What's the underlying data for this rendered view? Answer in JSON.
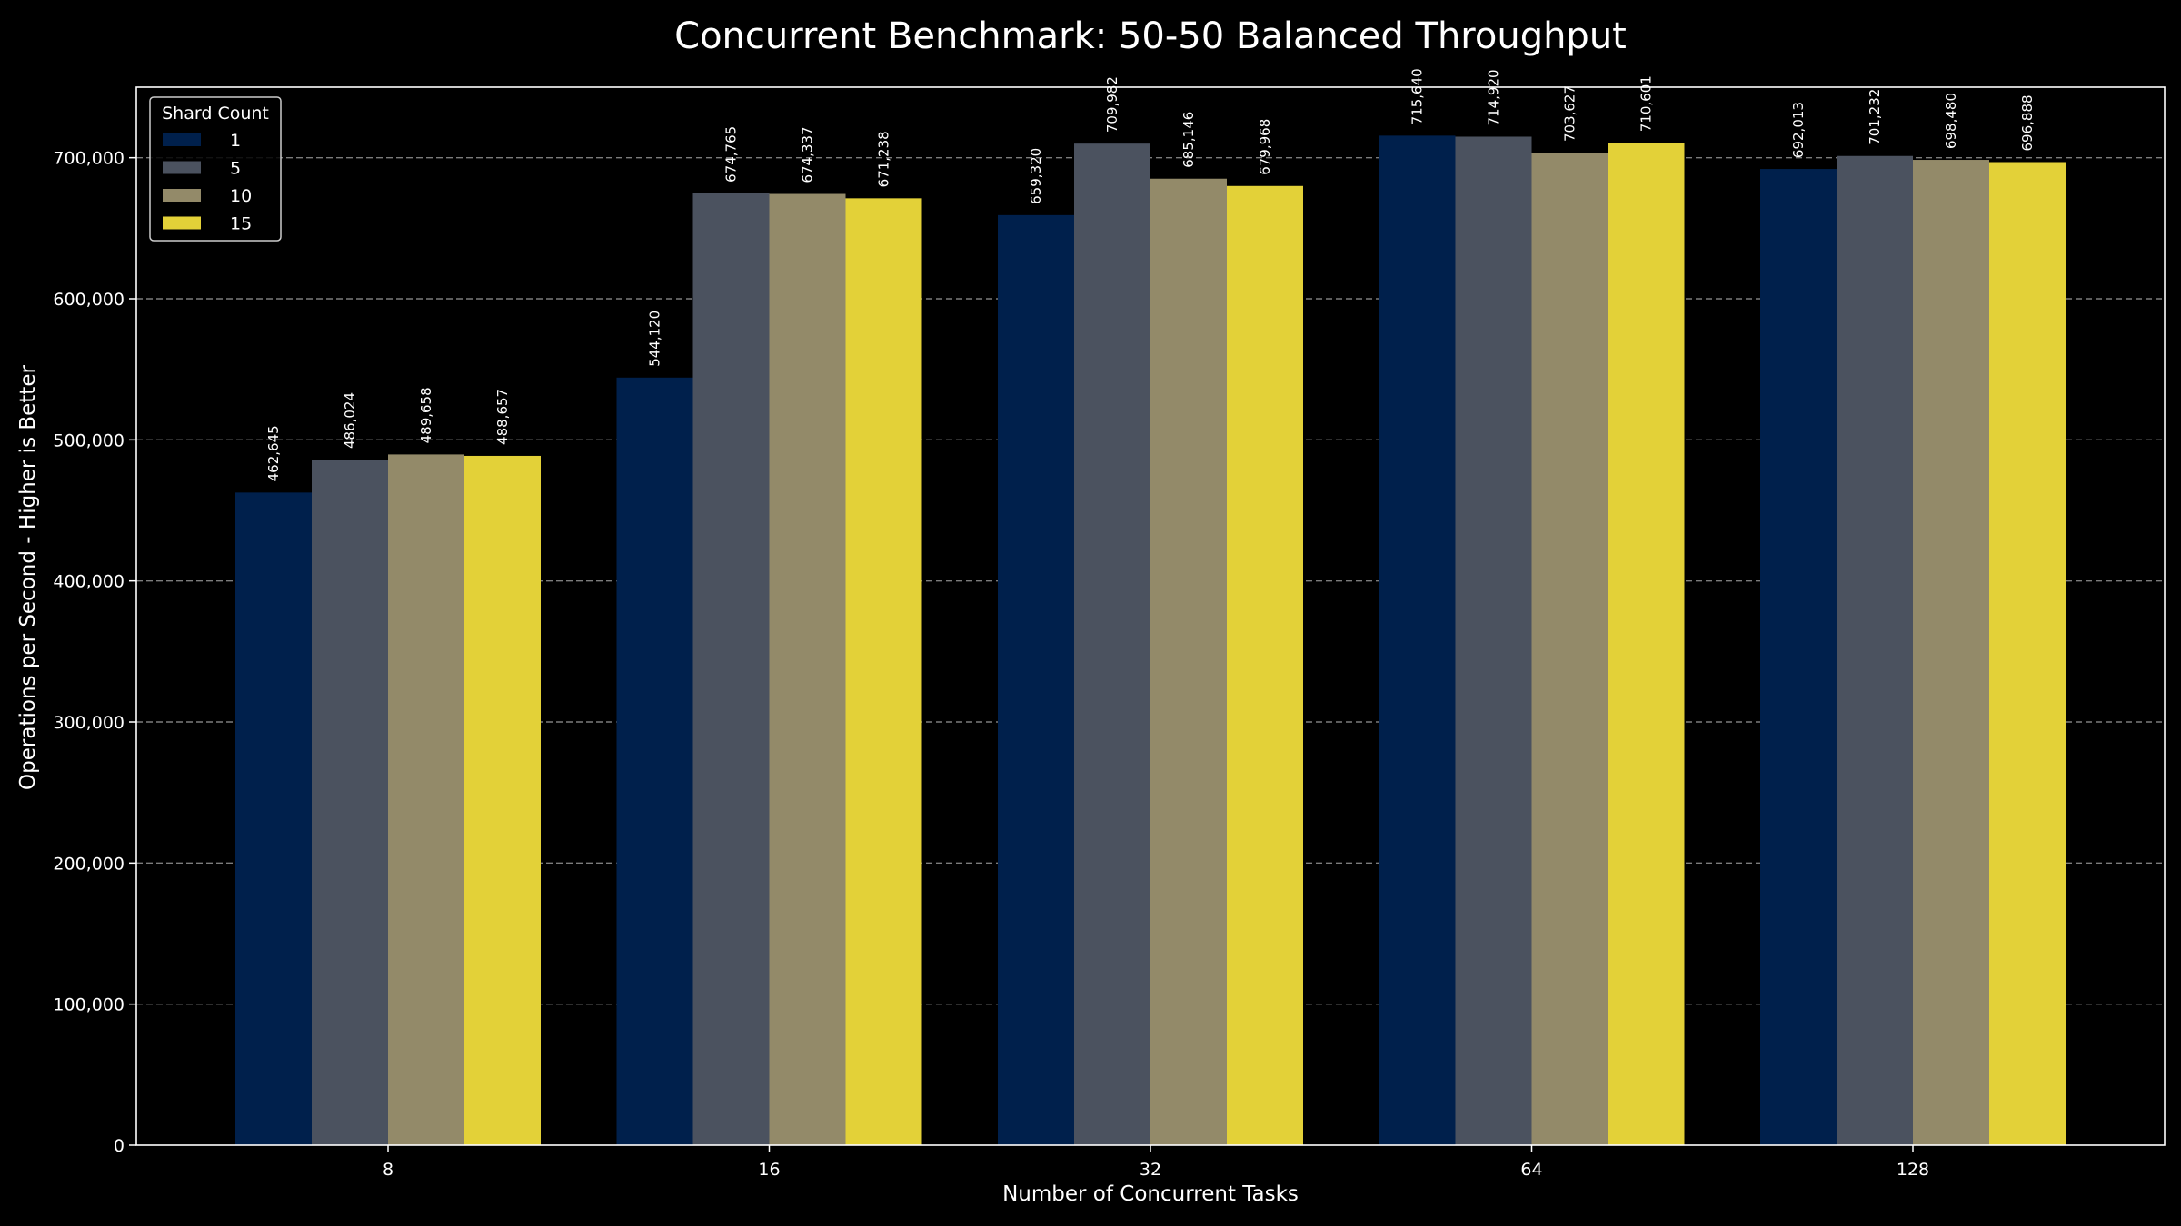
{
  "chart_data": {
    "type": "bar",
    "title": "Concurrent Benchmark: 50-50 Balanced Throughput",
    "xlabel": "Number of Concurrent Tasks",
    "ylabel": "Operations per Second - Higher is Better",
    "categories": [
      "8",
      "16",
      "32",
      "64",
      "128"
    ],
    "ylim": [
      0,
      750000
    ],
    "yticks": [
      0,
      100000,
      200000,
      300000,
      400000,
      500000,
      600000,
      700000
    ],
    "ytick_labels": [
      "0",
      "100,000",
      "200,000",
      "300,000",
      "400,000",
      "500,000",
      "600,000",
      "700,000"
    ],
    "grid": "horizontal-dashed",
    "legend": {
      "title": "Shard Count",
      "position": "top-left"
    },
    "series": [
      {
        "name": "1",
        "color": "#00204c",
        "values": [
          462645,
          544120,
          659320,
          715640,
          692013
        ],
        "labels": [
          "462,645",
          "544,120",
          "659,320",
          "715,640",
          "692,013"
        ]
      },
      {
        "name": "5",
        "color": "#4b525f",
        "values": [
          486024,
          674765,
          709982,
          714920,
          701232
        ],
        "labels": [
          "486,024",
          "674,765",
          "709,982",
          "714,920",
          "701,232"
        ]
      },
      {
        "name": "10",
        "color": "#938a69",
        "values": [
          489658,
          674337,
          685146,
          703627,
          698480
        ],
        "labels": [
          "489,658",
          "674,337",
          "685,146",
          "703,627",
          "698,480"
        ]
      },
      {
        "name": "15",
        "color": "#e3d138",
        "values": [
          488657,
          671238,
          679968,
          710601,
          696888
        ],
        "labels": [
          "488,657",
          "671,238",
          "679,968",
          "710,601",
          "696,888"
        ]
      }
    ]
  }
}
